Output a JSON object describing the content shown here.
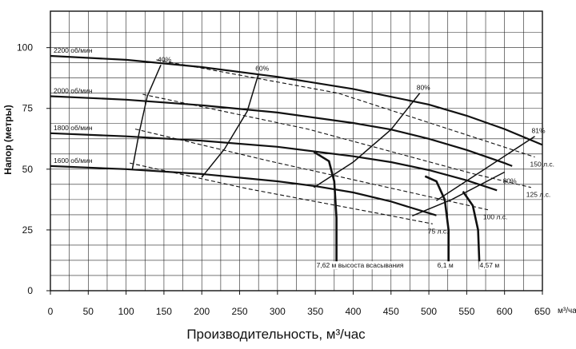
{
  "chart_data": {
    "type": "line",
    "xlabel": "Производительность, м³/час",
    "ylabel": "Напор (метры)",
    "x_unit": "м³/час",
    "xlim": [
      0,
      650
    ],
    "ylim": [
      0,
      115
    ],
    "x_ticks": [
      0,
      50,
      100,
      150,
      200,
      250,
      300,
      350,
      400,
      450,
      500,
      550,
      600,
      650
    ],
    "y_ticks": [
      0,
      25,
      50,
      75,
      100
    ],
    "grid": true,
    "speed_curves": [
      {
        "label": "2200 об/мин",
        "points": [
          [
            0,
            96.6
          ],
          [
            100,
            95
          ],
          [
            200,
            92
          ],
          [
            300,
            88
          ],
          [
            400,
            83
          ],
          [
            500,
            76.6
          ],
          [
            550,
            72
          ],
          [
            600,
            66.5
          ],
          [
            650,
            60
          ]
        ]
      },
      {
        "label": "2000 об/мин",
        "points": [
          [
            0,
            80
          ],
          [
            100,
            78.6
          ],
          [
            200,
            76.3
          ],
          [
            300,
            73.3
          ],
          [
            400,
            69
          ],
          [
            450,
            66.3
          ],
          [
            500,
            62.5
          ],
          [
            550,
            57.9
          ],
          [
            600,
            52.5
          ],
          [
            610,
            51.3
          ]
        ]
      },
      {
        "label": "1800 об/мин",
        "points": [
          [
            0,
            64.8
          ],
          [
            100,
            63.5
          ],
          [
            200,
            61.7
          ],
          [
            300,
            59.2
          ],
          [
            400,
            55.3
          ],
          [
            450,
            52.9
          ],
          [
            500,
            49.6
          ],
          [
            550,
            45.4
          ],
          [
            590,
            41.3
          ]
        ]
      },
      {
        "label": "1600 об/мин",
        "points": [
          [
            0,
            51.3
          ],
          [
            100,
            50
          ],
          [
            200,
            48
          ],
          [
            300,
            45
          ],
          [
            350,
            43
          ],
          [
            400,
            40.4
          ],
          [
            450,
            36.7
          ],
          [
            480,
            33.8
          ],
          [
            510,
            31
          ]
        ]
      }
    ],
    "efficiency_curves": [
      {
        "label": "40%",
        "points": [
          [
            108,
            49.6
          ],
          [
            117,
            64.6
          ],
          [
            128,
            80
          ],
          [
            146,
            92.9
          ]
        ]
      },
      {
        "label": "60%",
        "points": [
          [
            200,
            46.7
          ],
          [
            230,
            58.3
          ],
          [
            260,
            73.8
          ],
          [
            275,
            89.2
          ]
        ]
      },
      {
        "label": "80%",
        "points": [
          [
            348,
            42.5
          ],
          [
            400,
            52.9
          ],
          [
            450,
            66.3
          ],
          [
            488,
            81.3
          ]
        ]
      },
      {
        "label": "81%",
        "points": [
          [
            510,
            37.1
          ],
          [
            580,
            51.3
          ],
          [
            640,
            63.5
          ]
        ]
      },
      {
        "label": "80%",
        "points": [
          [
            478,
            30.8
          ],
          [
            530,
            37.5
          ],
          [
            600,
            48.8
          ]
        ]
      }
    ],
    "power_curves": [
      {
        "label": "150 л.с.",
        "points": [
          [
            140,
            95
          ],
          [
            380,
            81.3
          ],
          [
            640,
            55
          ]
        ]
      },
      {
        "label": "125 л.с.",
        "points": [
          [
            122,
            80.8
          ],
          [
            340,
            66.5
          ],
          [
            560,
            48
          ],
          [
            635,
            42.5
          ]
        ]
      },
      {
        "label": "100 л.с.",
        "points": [
          [
            112,
            66.5
          ],
          [
            290,
            53.3
          ],
          [
            470,
            40.8
          ],
          [
            578,
            33.3
          ]
        ]
      },
      {
        "label": "75 л.с.",
        "points": [
          [
            105,
            52.5
          ],
          [
            260,
            42
          ],
          [
            430,
            32
          ],
          [
            505,
            27.5
          ]
        ]
      }
    ],
    "suction_lift_curves": [
      {
        "label": "7,62 м высоста всасывания",
        "points": [
          [
            348,
            57.1
          ],
          [
            368,
            53.3
          ],
          [
            375,
            45
          ],
          [
            378,
            30
          ],
          [
            378,
            10
          ],
          [
            378,
            8.8
          ]
        ]
      },
      {
        "label": "6,1 м",
        "points": [
          [
            495,
            47.1
          ],
          [
            510,
            45
          ],
          [
            521,
            37.5
          ],
          [
            526,
            25
          ],
          [
            526,
            8.8
          ]
        ]
      },
      {
        "label": "4,57 м",
        "points": [
          [
            545,
            40.8
          ],
          [
            558,
            35
          ],
          [
            565,
            25
          ],
          [
            567,
            8.8
          ]
        ]
      }
    ]
  }
}
